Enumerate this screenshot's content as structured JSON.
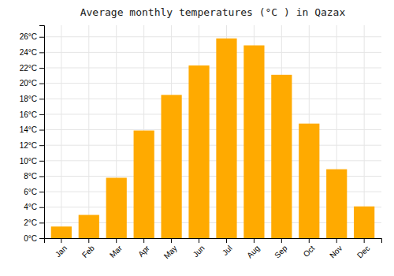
{
  "chart_data": {
    "type": "bar",
    "title": "Average monthly temperatures (°C ) in Qazax",
    "categories": [
      "Jan",
      "Feb",
      "Mar",
      "Apr",
      "May",
      "Jun",
      "Jul",
      "Aug",
      "Sep",
      "Oct",
      "Nov",
      "Dec"
    ],
    "values": [
      1.5,
      3.0,
      7.8,
      13.9,
      18.5,
      22.3,
      25.8,
      24.9,
      21.1,
      14.8,
      8.9,
      4.1
    ],
    "color": "#FFAA00",
    "ylim": [
      0,
      27.5
    ],
    "yticks": [
      {
        "value": 0,
        "label": "0°C"
      },
      {
        "value": 2,
        "label": "2°C"
      },
      {
        "value": 4,
        "label": "4°C"
      },
      {
        "value": 6,
        "label": "6°C"
      },
      {
        "value": 8,
        "label": "8°C"
      },
      {
        "value": 10,
        "label": "10°C"
      },
      {
        "value": 12,
        "label": "12°C"
      },
      {
        "value": 14,
        "label": "14°C"
      },
      {
        "value": 16,
        "label": "16°C"
      },
      {
        "value": 18,
        "label": "18°C"
      },
      {
        "value": 20,
        "label": "20°C"
      },
      {
        "value": 22,
        "label": "22°C"
      },
      {
        "value": 24,
        "label": "24°C"
      },
      {
        "value": 26,
        "label": "26°C"
      }
    ],
    "grid": true
  }
}
